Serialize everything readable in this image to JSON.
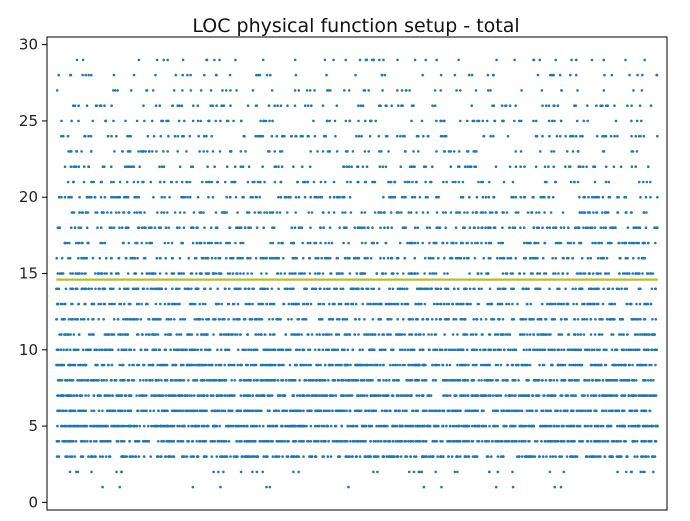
{
  "chart_data": {
    "type": "scatter",
    "title": "LOC physical function setup - total",
    "xlabel": "",
    "ylabel": "",
    "xlim": [
      0,
      1000
    ],
    "ylim": [
      -0.5,
      30.5
    ],
    "yticks": [
      0,
      5,
      10,
      15,
      20,
      25,
      30
    ],
    "grid": false,
    "series": [
      {
        "color": "#1f77b4",
        "marker_size": 1.3,
        "n_points": 6000,
        "value_range": [
          1,
          29
        ],
        "note_values_integer": true
      }
    ],
    "reference_line": {
      "y": 14.6,
      "x_range": [
        0,
        1000
      ],
      "color": "#bcbd22"
    }
  },
  "colors": {
    "points": "#1f77b4",
    "mean_line": "#bcbd22",
    "axes": "#000000"
  }
}
